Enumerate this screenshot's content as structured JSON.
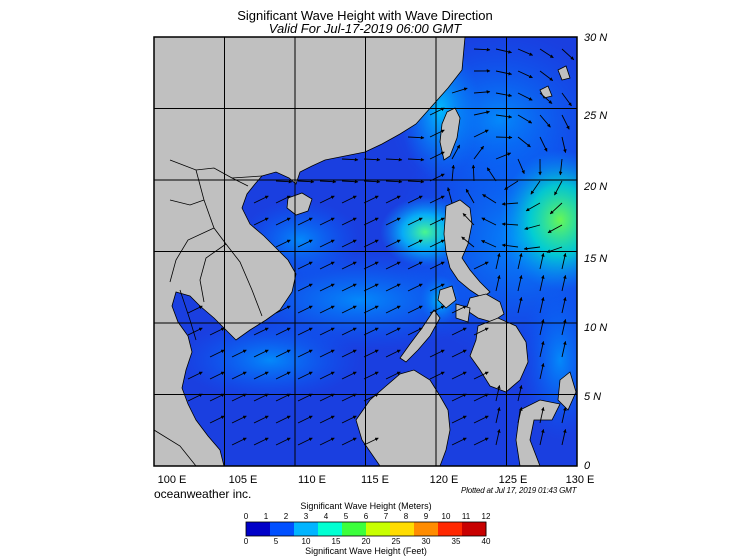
{
  "header": {
    "title": "Significant Wave Height with Wave Direction",
    "subtitle": "Valid For Jul-17-2019 06:00 GMT"
  },
  "map": {
    "lon_range": [
      100,
      130
    ],
    "lat_range": [
      0,
      30
    ],
    "lon_ticks": [
      "100 E",
      "105 E",
      "110 E",
      "115 E",
      "120 E",
      "125 E",
      "130 E"
    ],
    "lat_ticks": [
      "30 N",
      "25 N",
      "20 N",
      "15 N",
      "10 N",
      "5 N",
      "0"
    ],
    "grid": true,
    "land_color": "#c0c0c0",
    "water_base_color": "#1a3fe0"
  },
  "colorbar": {
    "meters_label": "Significant Wave Height (Meters)",
    "feet_label": "Significant Wave Height (Feet)",
    "meter_ticks": [
      "0",
      "1",
      "2",
      "3",
      "4",
      "5",
      "6",
      "7",
      "8",
      "9",
      "10",
      "11",
      "12"
    ],
    "feet_ticks": [
      "0",
      "5",
      "10",
      "15",
      "20",
      "25",
      "30",
      "35",
      "40"
    ],
    "colors": [
      "#0000c8",
      "#0050ff",
      "#00b4ff",
      "#00ffd2",
      "#3cff3c",
      "#c8ff00",
      "#ffdc00",
      "#ff8c00",
      "#ff2800",
      "#c80000"
    ]
  },
  "footer": {
    "brand": "oceanweather inc.",
    "plotted": "Plotted at Jul 17, 2019 01:43 GMT"
  }
}
